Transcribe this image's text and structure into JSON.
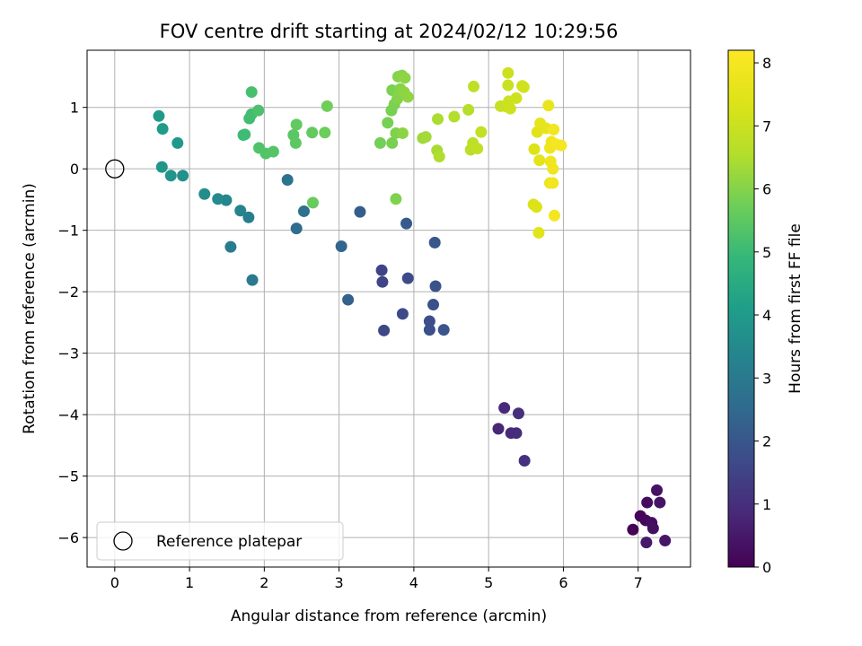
{
  "chart_data": {
    "type": "scatter",
    "title": "FOV centre drift starting at 2024/02/12 10:29:56",
    "xlabel": "Angular distance from reference (arcmin)",
    "ylabel": "Rotation from reference (arcmin)",
    "xlim": [
      -0.37,
      7.7
    ],
    "ylim": [
      -6.48,
      1.93
    ],
    "xticks": [
      0,
      1,
      2,
      3,
      4,
      5,
      6,
      7
    ],
    "yticks": [
      -6,
      -5,
      -4,
      -3,
      -2,
      -1,
      0,
      1
    ],
    "xtick_labels": [
      "0",
      "1",
      "2",
      "3",
      "4",
      "5",
      "6",
      "7"
    ],
    "ytick_labels": [
      "−6",
      "−5",
      "−4",
      "−3",
      "−2",
      "−1",
      "0",
      "1"
    ],
    "grid": true,
    "colormap": "viridis",
    "colorbar": {
      "label": "Hours from first FF file",
      "range": [
        0,
        8.2
      ],
      "ticks": [
        0,
        1,
        2,
        3,
        4,
        5,
        6,
        7,
        8
      ],
      "tick_labels": [
        "0",
        "1",
        "2",
        "3",
        "4",
        "5",
        "6",
        "7",
        "8"
      ]
    },
    "legend": {
      "location": "lower-left",
      "entries": [
        {
          "label": "Reference platepar",
          "marker": "open-circle"
        }
      ]
    },
    "reference_point": {
      "x": 0,
      "y": 0
    },
    "points": [
      {
        "x": 6.93,
        "y": -5.87,
        "t": 0.05
      },
      {
        "x": 7.03,
        "y": -5.65,
        "t": 0.1
      },
      {
        "x": 7.1,
        "y": -5.72,
        "t": 0.15
      },
      {
        "x": 7.12,
        "y": -5.43,
        "t": 0.2
      },
      {
        "x": 7.18,
        "y": -5.76,
        "t": 0.25
      },
      {
        "x": 7.2,
        "y": -5.85,
        "t": 0.3
      },
      {
        "x": 7.25,
        "y": -5.23,
        "t": 0.35
      },
      {
        "x": 7.29,
        "y": -5.43,
        "t": 0.4
      },
      {
        "x": 7.36,
        "y": -6.05,
        "t": 0.45
      },
      {
        "x": 7.11,
        "y": -6.08,
        "t": 0.5
      },
      {
        "x": 5.13,
        "y": -4.23,
        "t": 0.8
      },
      {
        "x": 5.21,
        "y": -3.89,
        "t": 0.85
      },
      {
        "x": 5.3,
        "y": -4.3,
        "t": 0.9
      },
      {
        "x": 5.37,
        "y": -4.3,
        "t": 0.95
      },
      {
        "x": 5.4,
        "y": -3.98,
        "t": 1.0
      },
      {
        "x": 5.48,
        "y": -4.75,
        "t": 1.05
      },
      {
        "x": 3.57,
        "y": -1.65,
        "t": 1.5
      },
      {
        "x": 3.58,
        "y": -1.84,
        "t": 1.55
      },
      {
        "x": 3.6,
        "y": -2.63,
        "t": 1.6
      },
      {
        "x": 3.85,
        "y": -2.36,
        "t": 1.65
      },
      {
        "x": 3.92,
        "y": -1.78,
        "t": 1.7
      },
      {
        "x": 4.21,
        "y": -2.48,
        "t": 1.75
      },
      {
        "x": 4.21,
        "y": -2.62,
        "t": 1.8
      },
      {
        "x": 4.26,
        "y": -2.21,
        "t": 1.85
      },
      {
        "x": 4.29,
        "y": -1.91,
        "t": 1.9
      },
      {
        "x": 4.4,
        "y": -2.62,
        "t": 1.95
      },
      {
        "x": 4.28,
        "y": -1.2,
        "t": 2.0
      },
      {
        "x": 3.9,
        "y": -0.89,
        "t": 2.1
      },
      {
        "x": 3.28,
        "y": -0.7,
        "t": 2.2
      },
      {
        "x": 3.12,
        "y": -2.13,
        "t": 2.3
      },
      {
        "x": 3.03,
        "y": -1.26,
        "t": 2.4
      },
      {
        "x": 2.43,
        "y": -0.97,
        "t": 2.6
      },
      {
        "x": 2.53,
        "y": -0.69,
        "t": 2.7
      },
      {
        "x": 2.31,
        "y": -0.18,
        "t": 2.8
      },
      {
        "x": 1.84,
        "y": -1.81,
        "t": 3.0
      },
      {
        "x": 1.55,
        "y": -1.27,
        "t": 3.1
      },
      {
        "x": 1.79,
        "y": -0.79,
        "t": 3.2
      },
      {
        "x": 1.68,
        "y": -0.68,
        "t": 3.3
      },
      {
        "x": 1.49,
        "y": -0.51,
        "t": 3.4
      },
      {
        "x": 1.38,
        "y": -0.49,
        "t": 3.5
      },
      {
        "x": 1.2,
        "y": -0.41,
        "t": 3.6
      },
      {
        "x": 0.91,
        "y": -0.11,
        "t": 3.7
      },
      {
        "x": 0.75,
        "y": -0.11,
        "t": 3.8
      },
      {
        "x": 0.63,
        "y": 0.03,
        "t": 3.9
      },
      {
        "x": 0.84,
        "y": 0.42,
        "t": 3.95
      },
      {
        "x": 0.64,
        "y": 0.65,
        "t": 4.0
      },
      {
        "x": 0.59,
        "y": 0.86,
        "t": 4.05
      },
      {
        "x": 1.72,
        "y": 0.55,
        "t": 5.0
      },
      {
        "x": 1.74,
        "y": 0.56,
        "t": 5.05
      },
      {
        "x": 1.8,
        "y": 0.82,
        "t": 5.1
      },
      {
        "x": 1.83,
        "y": 0.89,
        "t": 5.15
      },
      {
        "x": 1.83,
        "y": 1.25,
        "t": 5.2
      },
      {
        "x": 1.92,
        "y": 0.95,
        "t": 5.25
      },
      {
        "x": 1.93,
        "y": 0.34,
        "t": 5.3
      },
      {
        "x": 2.02,
        "y": 0.25,
        "t": 5.35
      },
      {
        "x": 2.12,
        "y": 0.28,
        "t": 5.4
      },
      {
        "x": 2.39,
        "y": 0.55,
        "t": 5.45
      },
      {
        "x": 2.42,
        "y": 0.42,
        "t": 5.5
      },
      {
        "x": 2.43,
        "y": 0.72,
        "t": 5.55
      },
      {
        "x": 2.64,
        "y": 0.59,
        "t": 5.6
      },
      {
        "x": 2.65,
        "y": -0.55,
        "t": 5.65
      },
      {
        "x": 2.81,
        "y": 0.59,
        "t": 5.7
      },
      {
        "x": 2.84,
        "y": 1.02,
        "t": 5.75
      },
      {
        "x": 3.55,
        "y": 0.42,
        "t": 5.8
      },
      {
        "x": 3.65,
        "y": 0.75,
        "t": 5.82
      },
      {
        "x": 3.7,
        "y": 0.95,
        "t": 5.84
      },
      {
        "x": 3.71,
        "y": 0.42,
        "t": 5.86
      },
      {
        "x": 3.71,
        "y": 1.28,
        "t": 5.88
      },
      {
        "x": 3.74,
        "y": 1.05,
        "t": 5.9
      },
      {
        "x": 3.76,
        "y": 0.58,
        "t": 5.92
      },
      {
        "x": 3.76,
        "y": -0.49,
        "t": 5.94
      },
      {
        "x": 3.78,
        "y": 1.14,
        "t": 5.96
      },
      {
        "x": 3.79,
        "y": 1.5,
        "t": 5.98
      },
      {
        "x": 3.8,
        "y": 1.2,
        "t": 6.0
      },
      {
        "x": 3.82,
        "y": 1.3,
        "t": 6.02
      },
      {
        "x": 3.84,
        "y": 1.52,
        "t": 6.04
      },
      {
        "x": 3.85,
        "y": 0.58,
        "t": 6.06
      },
      {
        "x": 3.87,
        "y": 1.25,
        "t": 6.08
      },
      {
        "x": 3.88,
        "y": 1.48,
        "t": 6.1
      },
      {
        "x": 3.92,
        "y": 1.17,
        "t": 6.12
      },
      {
        "x": 4.12,
        "y": 0.5,
        "t": 6.3
      },
      {
        "x": 4.16,
        "y": 0.52,
        "t": 6.35
      },
      {
        "x": 4.31,
        "y": 0.3,
        "t": 6.4
      },
      {
        "x": 4.32,
        "y": 0.81,
        "t": 6.45
      },
      {
        "x": 4.34,
        "y": 0.2,
        "t": 6.5
      },
      {
        "x": 4.54,
        "y": 0.85,
        "t": 6.55
      },
      {
        "x": 4.73,
        "y": 0.96,
        "t": 6.6
      },
      {
        "x": 4.76,
        "y": 0.31,
        "t": 6.65
      },
      {
        "x": 4.79,
        "y": 0.42,
        "t": 6.7
      },
      {
        "x": 4.8,
        "y": 1.34,
        "t": 6.75
      },
      {
        "x": 4.85,
        "y": 0.33,
        "t": 6.8
      },
      {
        "x": 4.9,
        "y": 0.6,
        "t": 6.85
      },
      {
        "x": 5.16,
        "y": 1.02,
        "t": 6.9
      },
      {
        "x": 5.22,
        "y": 1.02,
        "t": 6.95
      },
      {
        "x": 5.26,
        "y": 1.36,
        "t": 7.0
      },
      {
        "x": 5.26,
        "y": 1.56,
        "t": 7.02
      },
      {
        "x": 5.27,
        "y": 1.1,
        "t": 7.04
      },
      {
        "x": 5.29,
        "y": 0.98,
        "t": 7.06
      },
      {
        "x": 5.37,
        "y": 1.15,
        "t": 7.08
      },
      {
        "x": 5.45,
        "y": 1.35,
        "t": 7.1
      },
      {
        "x": 5.47,
        "y": 1.33,
        "t": 7.12
      },
      {
        "x": 5.6,
        "y": -0.58,
        "t": 7.3
      },
      {
        "x": 5.61,
        "y": 0.32,
        "t": 7.35
      },
      {
        "x": 5.64,
        "y": -0.62,
        "t": 7.4
      },
      {
        "x": 5.65,
        "y": 0.6,
        "t": 7.45
      },
      {
        "x": 5.67,
        "y": -1.04,
        "t": 7.5
      },
      {
        "x": 5.68,
        "y": 0.14,
        "t": 7.55
      },
      {
        "x": 5.69,
        "y": 0.74,
        "t": 7.6
      },
      {
        "x": 5.77,
        "y": 0.66,
        "t": 7.65
      },
      {
        "x": 5.8,
        "y": 1.03,
        "t": 7.7
      },
      {
        "x": 5.82,
        "y": -0.23,
        "t": 7.75
      },
      {
        "x": 5.82,
        "y": 0.34,
        "t": 7.78
      },
      {
        "x": 5.83,
        "y": 0.12,
        "t": 7.81
      },
      {
        "x": 5.84,
        "y": 0.44,
        "t": 7.84
      },
      {
        "x": 5.86,
        "y": 0.0,
        "t": 7.87
      },
      {
        "x": 5.86,
        "y": -0.23,
        "t": 7.9
      },
      {
        "x": 5.87,
        "y": 0.64,
        "t": 7.93
      },
      {
        "x": 5.88,
        "y": -0.76,
        "t": 7.96
      },
      {
        "x": 5.9,
        "y": 0.4,
        "t": 7.99
      },
      {
        "x": 5.97,
        "y": 0.38,
        "t": 8.02
      }
    ]
  }
}
